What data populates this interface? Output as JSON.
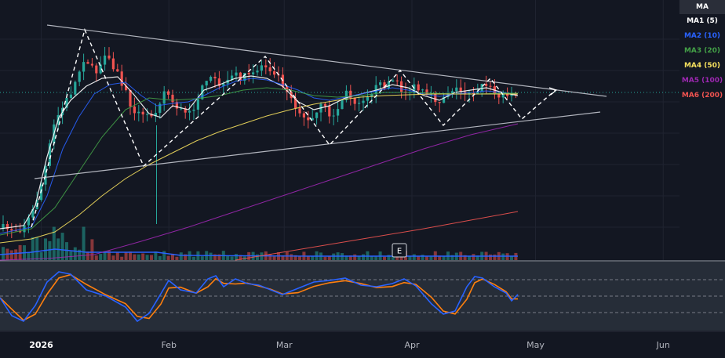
{
  "chart_data": {
    "type": "line",
    "x_axis": {
      "range": [
        "2025-12-22",
        "2026-06-16"
      ],
      "ticks": [
        {
          "date": "2026-01-01",
          "label": "2026"
        },
        {
          "date": "2026-02-01",
          "label": "Feb"
        },
        {
          "date": "2026-03-01",
          "label": "Mar"
        },
        {
          "date": "2026-04-01",
          "label": "Apr"
        },
        {
          "date": "2026-05-01",
          "label": "May"
        },
        {
          "date": "2026-06-01",
          "label": "Jun"
        }
      ]
    },
    "legend": {
      "title": "MA",
      "placement": "top-right",
      "items": [
        {
          "label": "MA1 (5)",
          "color": "#ffffff"
        },
        {
          "label": "MA2 (10)",
          "color": "#2962ff"
        },
        {
          "label": "MA3 (20)",
          "color": "#43a047"
        },
        {
          "label": "MA4 (50)",
          "color": "#f6e05e"
        },
        {
          "label": "MA5 (100)",
          "color": "#9c27b0"
        },
        {
          "label": "MA6 (200)",
          "color": "#ef5350"
        }
      ]
    },
    "price_line_color": "#26a69a",
    "earnings_marker": {
      "label": "E",
      "date": "2026-04-01"
    },
    "oscillator": {
      "levels": [
        80,
        50,
        20
      ],
      "k_color": "#2962ff",
      "d_color": "#ff7f0e"
    },
    "colors": {
      "up": "#26a69a",
      "down": "#ef5350",
      "background": "#131722",
      "grid": "#1f2330"
    }
  }
}
